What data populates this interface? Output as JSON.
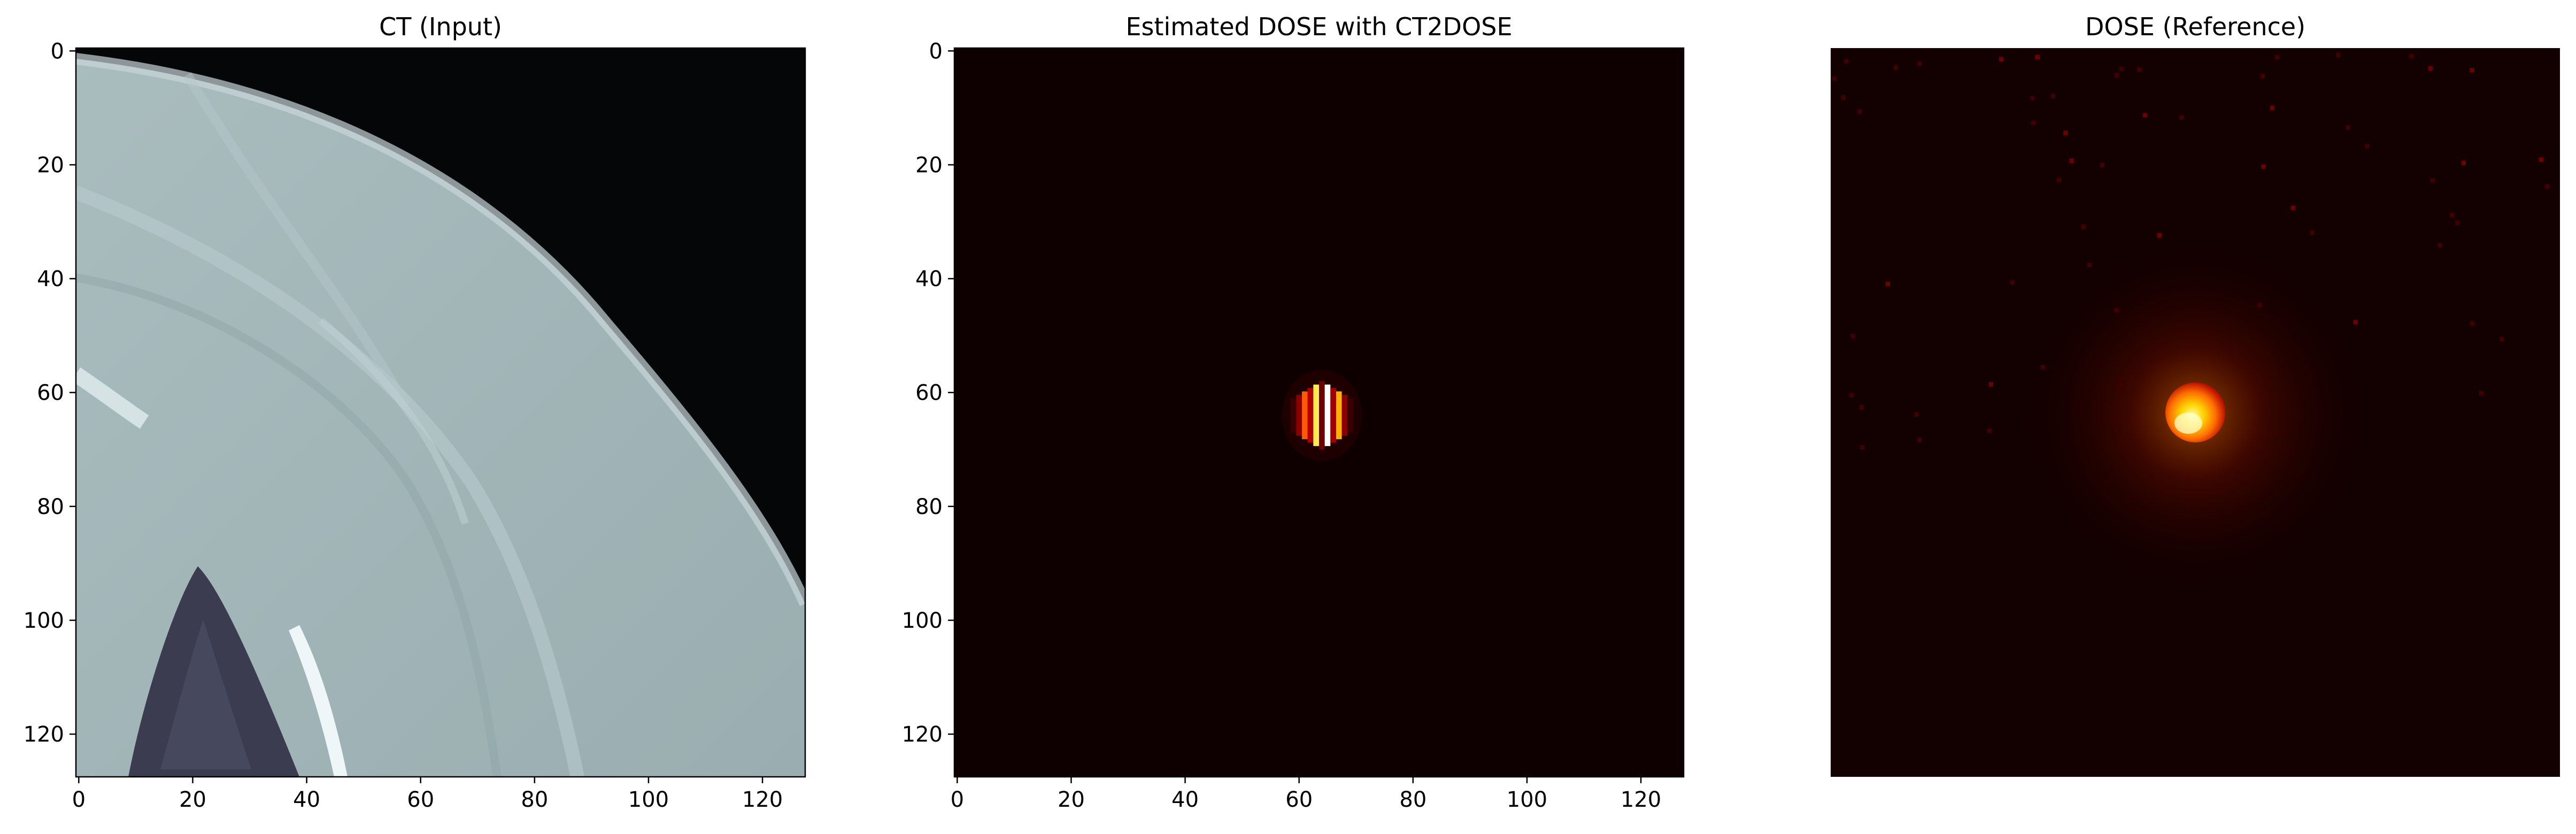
{
  "chart_data": [
    {
      "type": "heatmap",
      "title": "CT (Input)",
      "colormap": "bone",
      "xlim": [
        0,
        128
      ],
      "ylim": [
        128,
        0
      ],
      "xticks": [
        0,
        20,
        40,
        60,
        80,
        100,
        120
      ],
      "yticks": [
        0,
        20,
        40,
        60,
        80,
        100,
        120
      ],
      "axis_visible": true,
      "content": "CT slice: light gray soft tissue occupying lower-left, black air in upper-right, curved skin boundary, dark lung region near bottom-left with bright rib near x 40-46"
    },
    {
      "type": "heatmap",
      "title": "Estimated DOSE with CT2DOSE",
      "colormap": "hot",
      "xlim": [
        0,
        128
      ],
      "ylim": [
        128,
        0
      ],
      "xticks": [
        0,
        20,
        40,
        60,
        80,
        100,
        120
      ],
      "yticks": [
        0,
        20,
        40,
        60,
        80,
        100,
        120
      ],
      "axis_visible": true,
      "hotspot": {
        "center_x": 64,
        "center_y": 64,
        "pattern": "vertical striped blob"
      }
    },
    {
      "type": "heatmap",
      "title": "DOSE (Reference)",
      "colormap": "hot",
      "xlim": [
        0,
        128
      ],
      "ylim": [
        128,
        0
      ],
      "axis_visible": false,
      "hotspot": {
        "center_x": 64,
        "center_y": 64,
        "pattern": "smooth round blob with scattered speckles in upper area"
      }
    }
  ]
}
